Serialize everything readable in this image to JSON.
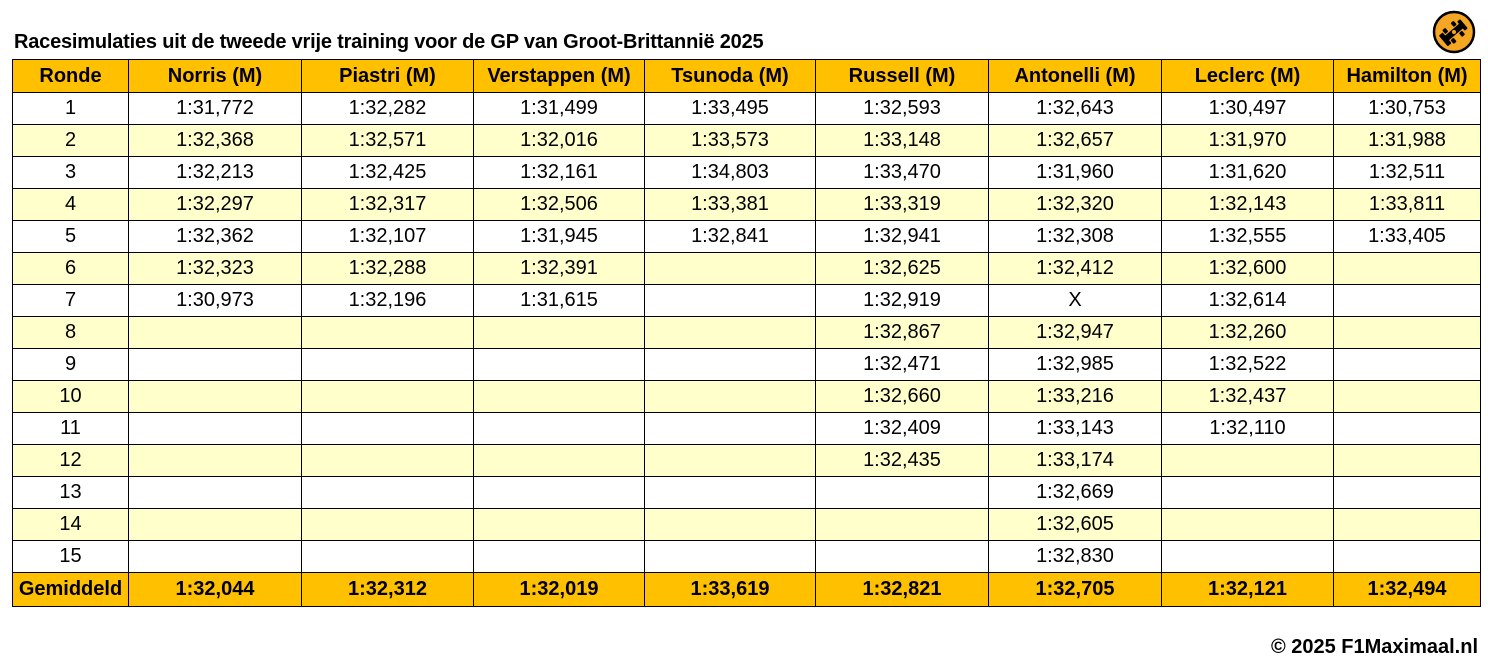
{
  "title": "Racesimulaties uit de tweede vrije training voor de GP van Groot-Brittannië 2025",
  "logo_icon": "f1-car-logo-icon",
  "columns": [
    "Ronde",
    "Norris (M)",
    "Piastri (M)",
    "Verstappen (M)",
    "Tsunoda (M)",
    "Russell (M)",
    "Antonelli (M)",
    "Leclerc (M)",
    "Hamilton (M)"
  ],
  "rows": [
    [
      "1",
      "1:31,772",
      "1:32,282",
      "1:31,499",
      "1:33,495",
      "1:32,593",
      "1:32,643",
      "1:30,497",
      "1:30,753"
    ],
    [
      "2",
      "1:32,368",
      "1:32,571",
      "1:32,016",
      "1:33,573",
      "1:33,148",
      "1:32,657",
      "1:31,970",
      "1:31,988"
    ],
    [
      "3",
      "1:32,213",
      "1:32,425",
      "1:32,161",
      "1:34,803",
      "1:33,470",
      "1:31,960",
      "1:31,620",
      "1:32,511"
    ],
    [
      "4",
      "1:32,297",
      "1:32,317",
      "1:32,506",
      "1:33,381",
      "1:33,319",
      "1:32,320",
      "1:32,143",
      "1:33,811"
    ],
    [
      "5",
      "1:32,362",
      "1:32,107",
      "1:31,945",
      "1:32,841",
      "1:32,941",
      "1:32,308",
      "1:32,555",
      "1:33,405"
    ],
    [
      "6",
      "1:32,323",
      "1:32,288",
      "1:32,391",
      "",
      "1:32,625",
      "1:32,412",
      "1:32,600",
      ""
    ],
    [
      "7",
      "1:30,973",
      "1:32,196",
      "1:31,615",
      "",
      "1:32,919",
      "X",
      "1:32,614",
      ""
    ],
    [
      "8",
      "",
      "",
      "",
      "",
      "1:32,867",
      "1:32,947",
      "1:32,260",
      ""
    ],
    [
      "9",
      "",
      "",
      "",
      "",
      "1:32,471",
      "1:32,985",
      "1:32,522",
      ""
    ],
    [
      "10",
      "",
      "",
      "",
      "",
      "1:32,660",
      "1:33,216",
      "1:32,437",
      ""
    ],
    [
      "11",
      "",
      "",
      "",
      "",
      "1:32,409",
      "1:33,143",
      "1:32,110",
      ""
    ],
    [
      "12",
      "",
      "",
      "",
      "",
      "1:32,435",
      "1:33,174",
      "",
      ""
    ],
    [
      "13",
      "",
      "",
      "",
      "",
      "",
      "1:32,669",
      "",
      ""
    ],
    [
      "14",
      "",
      "",
      "",
      "",
      "",
      "1:32,605",
      "",
      ""
    ],
    [
      "15",
      "",
      "",
      "",
      "",
      "",
      "1:32,830",
      "",
      ""
    ]
  ],
  "average": [
    "Gemiddeld",
    "1:32,044",
    "1:32,312",
    "1:32,019",
    "1:33,619",
    "1:32,821",
    "1:32,705",
    "1:32,121",
    "1:32,494"
  ],
  "copyright": "© 2025 F1Maximaal.nl",
  "colors": {
    "header_bg": "#ffc000",
    "alt_row_bg": "#ffffcc",
    "row_bg": "#ffffff"
  }
}
